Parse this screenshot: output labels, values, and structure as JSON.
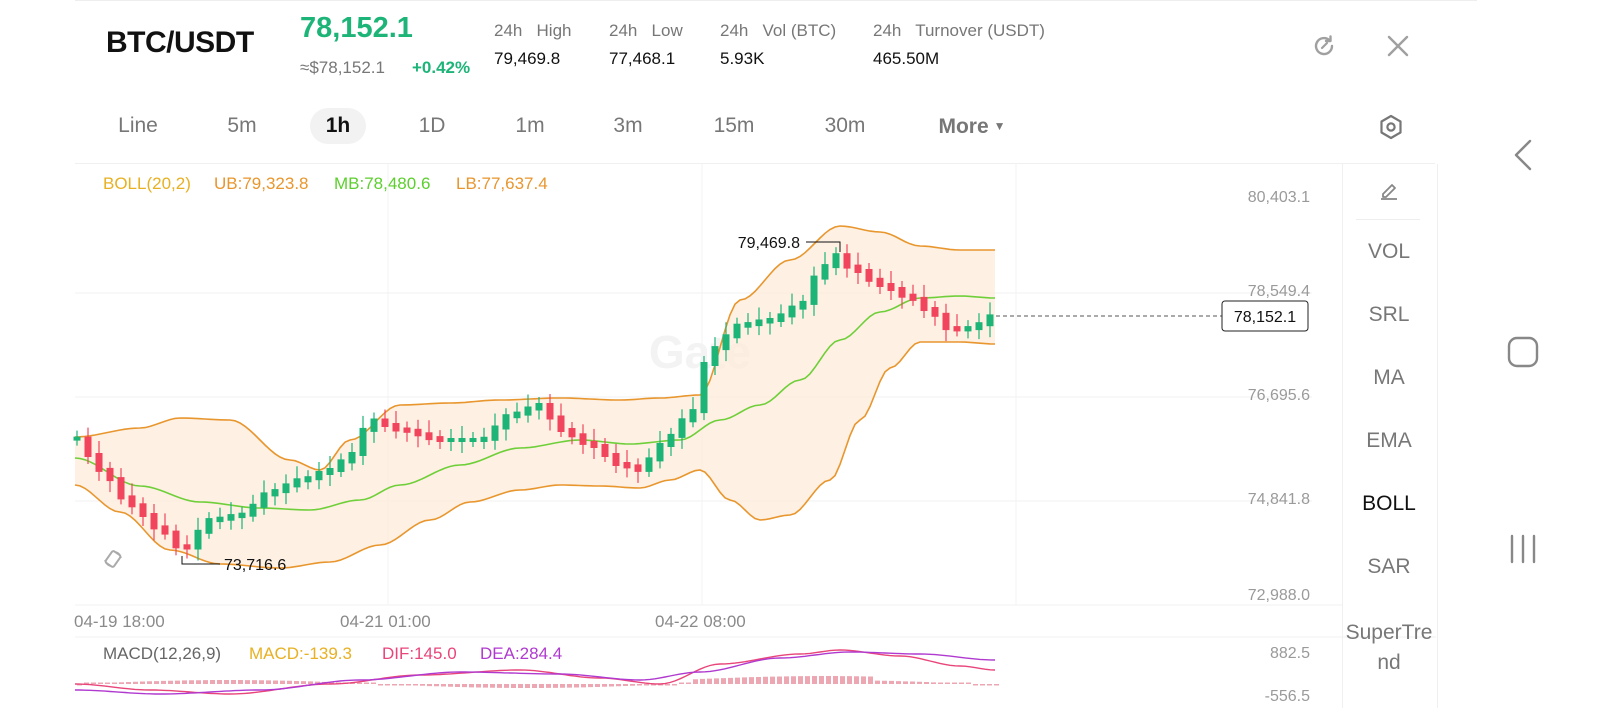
{
  "header": {
    "pair": "BTC/USDT",
    "price": "78,152.1",
    "usd_price": "≈$78,152.1",
    "change": "+0.42%",
    "stats": [
      {
        "label": "24h   High",
        "value": "79,469.8"
      },
      {
        "label": "24h   Low",
        "value": "77,468.1"
      },
      {
        "label": "24h   Vol (BTC)",
        "value": "5.93K"
      },
      {
        "label": "24h   Turnover (USDT)",
        "value": "465.50M"
      }
    ],
    "icons": {
      "refresh": "refresh-icon",
      "close": "close-icon"
    }
  },
  "timeframes": {
    "items": [
      "Line",
      "5m",
      "1h",
      "1D",
      "1m",
      "3m",
      "15m",
      "30m"
    ],
    "more": "More",
    "active": "1h",
    "settings_icon": "settings-icon"
  },
  "boll": {
    "name": "BOLL(20,2)",
    "ub": "UB:79,323.8",
    "mb": "MB:78,480.6",
    "lb": "LB:77,637.4"
  },
  "price_axis": [
    "80,403.1",
    "78,549.4",
    "76,695.6",
    "74,841.8",
    "72,988.0"
  ],
  "time_axis": [
    "04-19 18:00",
    "04-21 01:00",
    "04-22 08:00"
  ],
  "markers": {
    "high": "79,469.8",
    "low": "73,716.6",
    "last": "78,152.1"
  },
  "watermark": "Gate",
  "macd": {
    "name": "MACD(12,26,9)",
    "macd": "MACD:-139.3",
    "dif": "DIF:145.0",
    "dea": "DEA:284.4",
    "axis_top": "882.5",
    "axis_bottom": "-556.5"
  },
  "indicators": {
    "edit_icon": "edit-icon",
    "items": [
      "VOL",
      "SRL",
      "MA",
      "EMA",
      "BOLL",
      "SAR",
      "SuperTre nd"
    ],
    "active": "BOLL"
  },
  "colors": {
    "up": "#1db478",
    "down": "#f0455d",
    "boll_band": "#e8962e",
    "boll_mid": "#6fcf3a",
    "boll_label": "#e8b023",
    "dif": "#e8457a",
    "dea": "#b03ad0"
  },
  "system_nav": {
    "back": "back-icon",
    "home": "home-icon",
    "recents": "recents-icon"
  }
}
